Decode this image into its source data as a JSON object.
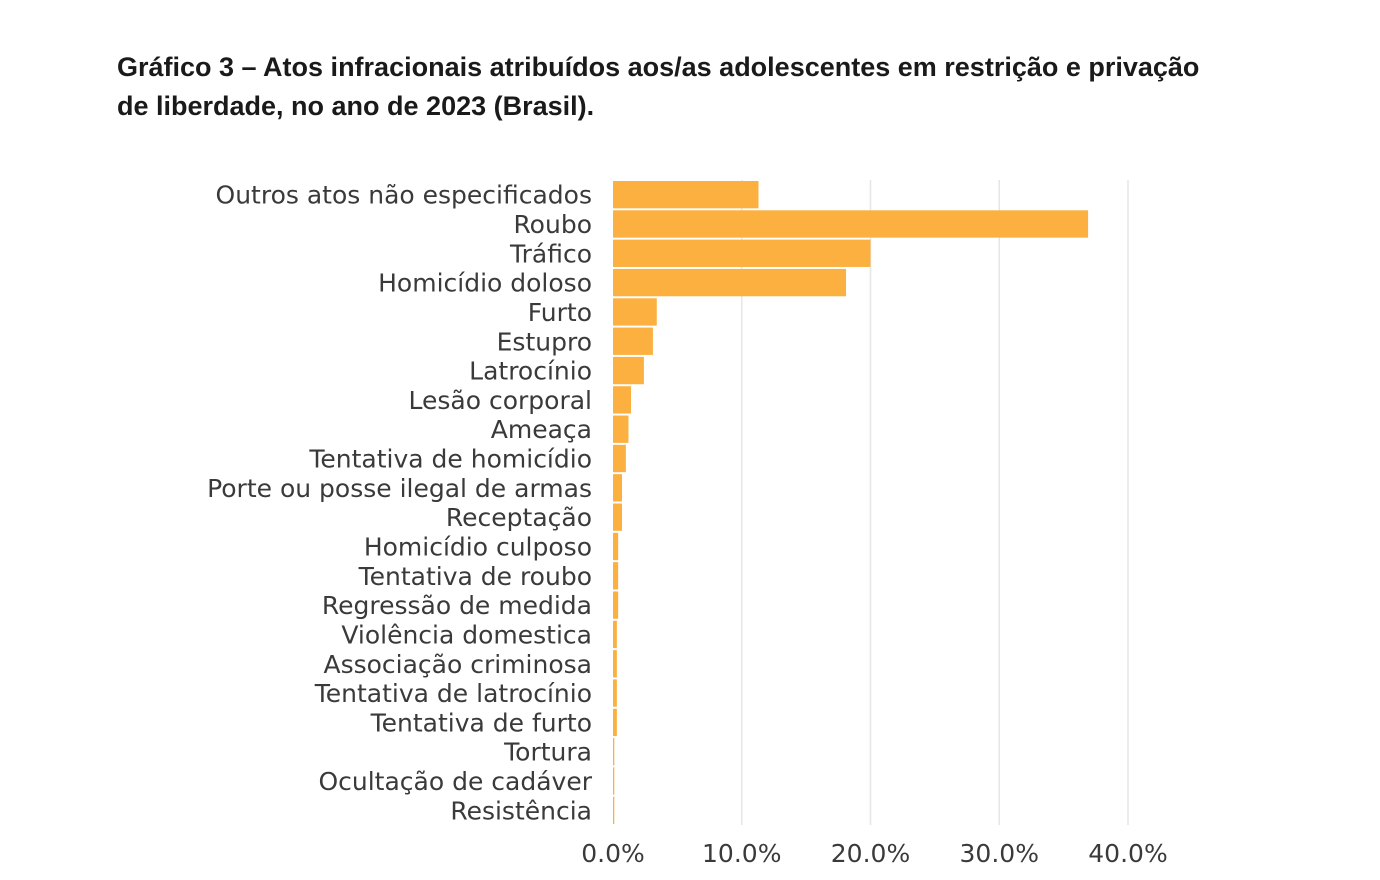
{
  "chart_data": {
    "type": "bar",
    "orientation": "horizontal",
    "title": "Gráfico 3 – Atos infracionais atribuídos aos/as adolescentes em restrição e privação de liberdade, no ano de 2023 (Brasil).",
    "categories": [
      "Outros atos não especificados",
      "Roubo",
      "Tráfico",
      "Homicídio doloso",
      "Furto",
      "Estupro",
      "Latrocínio",
      "Lesão corporal",
      "Ameaça",
      "Tentativa de homicídio",
      "Porte ou posse ilegal de armas",
      "Receptação",
      "Homicídio culposo",
      "Tentativa de roubo",
      "Regressão de medida",
      "Violência domestica",
      "Associação criminosa",
      "Tentativa de latrocínio",
      "Tentativa de furto",
      "Tortura",
      "Ocultação de cadáver",
      "Resistência"
    ],
    "values": [
      11.3,
      36.9,
      20.0,
      18.1,
      3.4,
      3.1,
      2.4,
      1.4,
      1.2,
      1.0,
      0.7,
      0.7,
      0.4,
      0.4,
      0.4,
      0.3,
      0.3,
      0.3,
      0.3,
      0.1,
      0.1,
      0.1
    ],
    "xticks": [
      "0.0%",
      "10.0%",
      "20.0%",
      "30.0%",
      "40.0%"
    ],
    "xlim": [
      0,
      40
    ],
    "grid": true,
    "bar_color": "#FBB040",
    "grid_color": "#e6e6e6"
  }
}
